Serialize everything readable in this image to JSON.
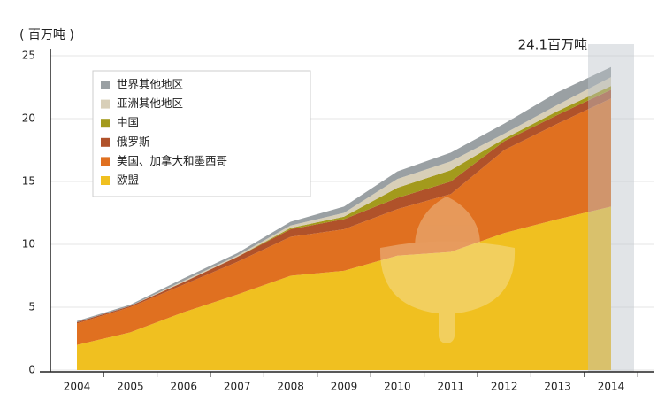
{
  "chart_data": {
    "type": "stacked_area",
    "y_label": "( 百万吨 )",
    "annotation": "24.1百万吨",
    "categories": [
      "2004",
      "2005",
      "2006",
      "2007",
      "2008",
      "2009",
      "2010",
      "2011",
      "2012",
      "2013",
      "2014"
    ],
    "highlight": "2014",
    "series": [
      {
        "name": "欧盟",
        "color": "#f0c020",
        "values": [
          2.0,
          3.0,
          4.6,
          6.0,
          7.5,
          7.9,
          9.1,
          9.4,
          10.9,
          12.0,
          13.0
        ]
      },
      {
        "name": "美国、加拿大和墨西哥",
        "color": "#e07020",
        "values": [
          1.7,
          2.0,
          2.2,
          2.6,
          3.1,
          3.3,
          3.7,
          4.6,
          6.6,
          7.6,
          8.6
        ]
      },
      {
        "name": "俄罗斯",
        "color": "#b0522a",
        "values": [
          0.1,
          0.1,
          0.2,
          0.4,
          0.6,
          0.8,
          0.9,
          1.0,
          0.7,
          0.7,
          0.7
        ]
      },
      {
        "name": "中国",
        "color": "#a39a1c",
        "values": [
          0,
          0,
          0,
          0,
          0.1,
          0.2,
          0.8,
          0.9,
          0.2,
          0.3,
          0.3
        ]
      },
      {
        "name": "亚洲其他地区",
        "color": "#d8cfb8",
        "values": [
          0,
          0,
          0.1,
          0.1,
          0.2,
          0.3,
          0.7,
          0.7,
          0.4,
          0.5,
          0.7
        ]
      },
      {
        "name": "世界其他地区",
        "color": "#9aa0a3",
        "values": [
          0.1,
          0.1,
          0.2,
          0.2,
          0.3,
          0.5,
          0.6,
          0.7,
          0.8,
          1.0,
          0.8
        ]
      }
    ],
    "ylim": [
      0,
      25
    ],
    "yticks": [
      0,
      5,
      10,
      15,
      20,
      25
    ],
    "grid": true,
    "legend": "top-left"
  }
}
